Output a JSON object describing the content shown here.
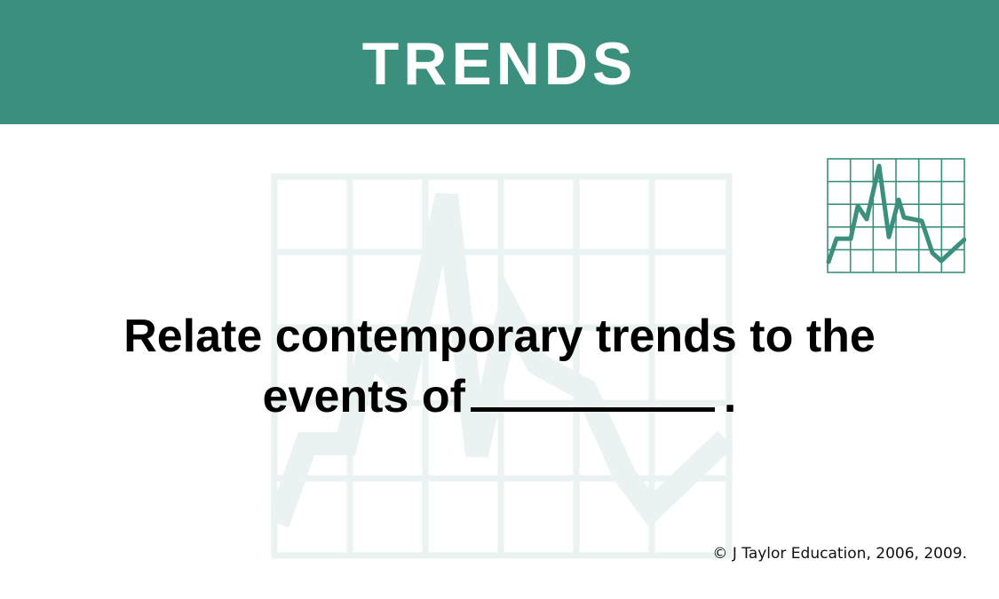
{
  "header": {
    "title": "TRENDS",
    "background_color": "#3a8f7d",
    "text_color": "#ffffff"
  },
  "decorations": {
    "watermark_icon": "trend-graph-icon",
    "watermark_color": "#eaf3f1",
    "corner_icon": "trend-graph-icon",
    "corner_color": "#3a8f7d"
  },
  "prompt": {
    "line1": "Relate contemporary trends to the",
    "line2_prefix": "events of",
    "line2_suffix": "."
  },
  "footer": {
    "copyright": "© J Taylor Education, 2006, 2009."
  }
}
